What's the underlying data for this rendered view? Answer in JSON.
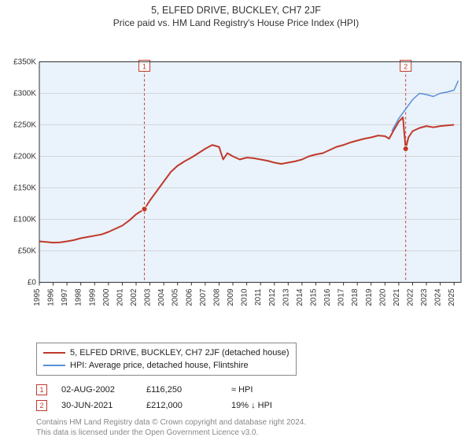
{
  "title": "5, ELFED DRIVE, BUCKLEY, CH7 2JF",
  "subtitle": "Price paid vs. HM Land Registry's House Price Index (HPI)",
  "chart": {
    "type": "line",
    "plot_background": "#eaf2fb",
    "outer_background": "#ffffff",
    "axis_color": "#333333",
    "grid_color": "#cccccc",
    "ylabel_prefix": "£",
    "ylim": [
      0,
      350000
    ],
    "ytick_step": 50000,
    "yticks": [
      "£0",
      "£50K",
      "£100K",
      "£150K",
      "£200K",
      "£250K",
      "£300K",
      "£350K"
    ],
    "xlim": [
      1995,
      2025.5
    ],
    "xticks": [
      1995,
      1996,
      1997,
      1998,
      1999,
      2000,
      2001,
      2002,
      2003,
      2004,
      2005,
      2006,
      2007,
      2008,
      2009,
      2010,
      2011,
      2012,
      2013,
      2014,
      2015,
      2016,
      2017,
      2018,
      2019,
      2020,
      2021,
      2022,
      2023,
      2024,
      2025
    ],
    "axis_fontsize": 10,
    "series": [
      {
        "id": "property",
        "label": "5, ELFED DRIVE, BUCKLEY, CH7 2JF (detached house)",
        "color": "#c0392b",
        "width": 2,
        "data": [
          [
            1995,
            65000
          ],
          [
            1995.5,
            64000
          ],
          [
            1996,
            63000
          ],
          [
            1996.5,
            63500
          ],
          [
            1997,
            65000
          ],
          [
            1997.5,
            67000
          ],
          [
            1998,
            70000
          ],
          [
            1998.5,
            72000
          ],
          [
            1999,
            74000
          ],
          [
            1999.5,
            76000
          ],
          [
            2000,
            80000
          ],
          [
            2000.5,
            85000
          ],
          [
            2001,
            90000
          ],
          [
            2001.5,
            98000
          ],
          [
            2002,
            108000
          ],
          [
            2002.6,
            116250
          ],
          [
            2003,
            130000
          ],
          [
            2003.5,
            145000
          ],
          [
            2004,
            160000
          ],
          [
            2004.5,
            175000
          ],
          [
            2005,
            185000
          ],
          [
            2005.5,
            192000
          ],
          [
            2006,
            198000
          ],
          [
            2006.5,
            205000
          ],
          [
            2007,
            212000
          ],
          [
            2007.5,
            218000
          ],
          [
            2008,
            215000
          ],
          [
            2008.3,
            195000
          ],
          [
            2008.6,
            205000
          ],
          [
            2009,
            200000
          ],
          [
            2009.5,
            195000
          ],
          [
            2010,
            198000
          ],
          [
            2010.5,
            197000
          ],
          [
            2011,
            195000
          ],
          [
            2011.5,
            193000
          ],
          [
            2012,
            190000
          ],
          [
            2012.5,
            188000
          ],
          [
            2013,
            190000
          ],
          [
            2013.5,
            192000
          ],
          [
            2014,
            195000
          ],
          [
            2014.5,
            200000
          ],
          [
            2015,
            203000
          ],
          [
            2015.5,
            205000
          ],
          [
            2016,
            210000
          ],
          [
            2016.5,
            215000
          ],
          [
            2017,
            218000
          ],
          [
            2017.5,
            222000
          ],
          [
            2018,
            225000
          ],
          [
            2018.5,
            228000
          ],
          [
            2019,
            230000
          ],
          [
            2019.5,
            233000
          ],
          [
            2020,
            232000
          ],
          [
            2020.3,
            228000
          ],
          [
            2020.6,
            240000
          ],
          [
            2021,
            255000
          ],
          [
            2021.3,
            262000
          ],
          [
            2021.5,
            212000
          ],
          [
            2021.7,
            230000
          ],
          [
            2022,
            240000
          ],
          [
            2022.5,
            245000
          ],
          [
            2023,
            248000
          ],
          [
            2023.5,
            246000
          ],
          [
            2024,
            248000
          ],
          [
            2024.5,
            249000
          ],
          [
            2025,
            250000
          ]
        ]
      },
      {
        "id": "hpi",
        "label": "HPI: Average price, detached house, Flintshire",
        "color": "#5b8fd6",
        "width": 1.5,
        "data": [
          [
            2020.5,
            240000
          ],
          [
            2021,
            260000
          ],
          [
            2021.5,
            275000
          ],
          [
            2022,
            290000
          ],
          [
            2022.5,
            300000
          ],
          [
            2023,
            298000
          ],
          [
            2023.5,
            295000
          ],
          [
            2024,
            300000
          ],
          [
            2024.5,
            302000
          ],
          [
            2025,
            305000
          ],
          [
            2025.3,
            320000
          ]
        ]
      }
    ],
    "sale_markers": [
      {
        "n": "1",
        "x": 2002.6,
        "date": "02-AUG-2002",
        "price": "£116,250",
        "delta": "≈ HPI",
        "line_color": "#c0392b",
        "dash": "3,3"
      },
      {
        "n": "2",
        "x": 2021.5,
        "date": "30-JUN-2021",
        "price": "£212,000",
        "delta": "19% ↓ HPI",
        "line_color": "#c0392b",
        "dash": "3,3"
      }
    ],
    "sale_point_color": "#c0392b"
  },
  "legend": {
    "border_color": "#888888",
    "items": [
      {
        "color": "#c0392b",
        "label": "5, ELFED DRIVE, BUCKLEY, CH7 2JF (detached house)"
      },
      {
        "color": "#5b8fd6",
        "label": "HPI: Average price, detached house, Flintshire"
      }
    ]
  },
  "footer": {
    "line1": "Contains HM Land Registry data © Crown copyright and database right 2024.",
    "line2": "This data is licensed under the Open Government Licence v3.0."
  }
}
